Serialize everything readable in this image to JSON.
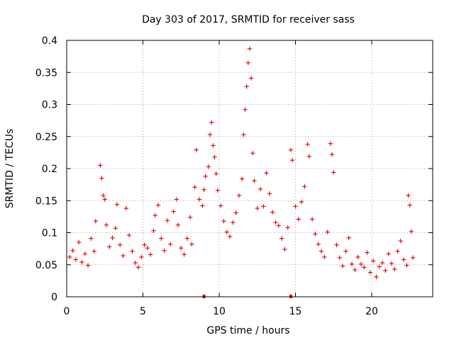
{
  "chart_data": {
    "type": "scatter",
    "title": "Day 303 of 2017, SRMTID for receiver sass",
    "xlabel": "GPS time / hours",
    "ylabel": "SRMTID / TECUs",
    "xlim": [
      0,
      24
    ],
    "ylim": [
      0,
      0.4
    ],
    "xticks": [
      0,
      5,
      10,
      15,
      20
    ],
    "xtick_labels": [
      "0",
      "5",
      "10",
      "15",
      "20"
    ],
    "yticks": [
      0,
      0.05,
      0.1,
      0.15,
      0.2,
      0.25,
      0.3,
      0.35,
      0.4
    ],
    "ytick_labels": [
      "0",
      "0.05",
      "0.1",
      "0.15",
      "0.2",
      "0.25",
      "0.3",
      "0.35",
      "0.4"
    ],
    "grid": true,
    "legend": "none",
    "marker": "plus",
    "color": "#e00000",
    "data_range_hours": [
      0,
      22.7
    ],
    "baseline_markers_x": [
      9.0,
      14.7
    ],
    "series": [
      {
        "name": "sass",
        "points": [
          [
            0.2,
            0.062
          ],
          [
            0.4,
            0.072
          ],
          [
            0.6,
            0.058
          ],
          [
            0.8,
            0.085
          ],
          [
            1.0,
            0.054
          ],
          [
            1.2,
            0.067
          ],
          [
            1.4,
            0.049
          ],
          [
            1.6,
            0.091
          ],
          [
            1.8,
            0.071
          ],
          [
            1.9,
            0.118
          ],
          [
            2.2,
            0.205
          ],
          [
            2.3,
            0.185
          ],
          [
            2.4,
            0.158
          ],
          [
            2.5,
            0.152
          ],
          [
            2.6,
            0.112
          ],
          [
            2.8,
            0.078
          ],
          [
            3.0,
            0.092
          ],
          [
            3.2,
            0.107
          ],
          [
            3.3,
            0.144
          ],
          [
            3.5,
            0.081
          ],
          [
            3.7,
            0.064
          ],
          [
            3.9,
            0.138
          ],
          [
            4.1,
            0.096
          ],
          [
            4.3,
            0.071
          ],
          [
            4.5,
            0.053
          ],
          [
            4.7,
            0.046
          ],
          [
            4.9,
            0.062
          ],
          [
            5.1,
            0.081
          ],
          [
            5.3,
            0.076
          ],
          [
            5.5,
            0.066
          ],
          [
            5.7,
            0.103
          ],
          [
            5.8,
            0.127
          ],
          [
            6.0,
            0.143
          ],
          [
            6.2,
            0.091
          ],
          [
            6.4,
            0.072
          ],
          [
            6.6,
            0.119
          ],
          [
            6.8,
            0.082
          ],
          [
            7.0,
            0.133
          ],
          [
            7.2,
            0.152
          ],
          [
            7.3,
            0.112
          ],
          [
            7.5,
            0.076
          ],
          [
            7.7,
            0.066
          ],
          [
            7.9,
            0.091
          ],
          [
            8.1,
            0.124
          ],
          [
            8.2,
            0.082
          ],
          [
            8.4,
            0.171
          ],
          [
            8.5,
            0.229
          ],
          [
            8.7,
            0.152
          ],
          [
            8.9,
            0.142
          ],
          [
            9.0,
            0.167
          ],
          [
            9.1,
            0.188
          ],
          [
            9.3,
            0.203
          ],
          [
            9.4,
            0.253
          ],
          [
            9.5,
            0.272
          ],
          [
            9.6,
            0.236
          ],
          [
            9.7,
            0.218
          ],
          [
            9.8,
            0.192
          ],
          [
            9.9,
            0.166
          ],
          [
            10.1,
            0.142
          ],
          [
            10.3,
            0.118
          ],
          [
            10.5,
            0.101
          ],
          [
            10.7,
            0.094
          ],
          [
            10.9,
            0.116
          ],
          [
            11.1,
            0.131
          ],
          [
            11.3,
            0.158
          ],
          [
            11.5,
            0.184
          ],
          [
            11.6,
            0.253
          ],
          [
            11.7,
            0.292
          ],
          [
            11.8,
            0.328
          ],
          [
            11.9,
            0.365
          ],
          [
            12.0,
            0.387
          ],
          [
            12.1,
            0.341
          ],
          [
            12.2,
            0.224
          ],
          [
            12.3,
            0.181
          ],
          [
            12.5,
            0.138
          ],
          [
            12.7,
            0.168
          ],
          [
            12.9,
            0.141
          ],
          [
            13.1,
            0.193
          ],
          [
            13.3,
            0.161
          ],
          [
            13.5,
            0.132
          ],
          [
            13.7,
            0.116
          ],
          [
            13.9,
            0.111
          ],
          [
            14.1,
            0.091
          ],
          [
            14.3,
            0.074
          ],
          [
            14.5,
            0.108
          ],
          [
            14.7,
            0.229
          ],
          [
            14.8,
            0.213
          ],
          [
            15.0,
            0.141
          ],
          [
            15.2,
            0.121
          ],
          [
            15.4,
            0.148
          ],
          [
            15.6,
            0.172
          ],
          [
            15.8,
            0.238
          ],
          [
            15.9,
            0.219
          ],
          [
            16.1,
            0.121
          ],
          [
            16.3,
            0.098
          ],
          [
            16.5,
            0.082
          ],
          [
            16.7,
            0.071
          ],
          [
            16.9,
            0.062
          ],
          [
            17.1,
            0.101
          ],
          [
            17.3,
            0.239
          ],
          [
            17.4,
            0.222
          ],
          [
            17.5,
            0.194
          ],
          [
            17.7,
            0.081
          ],
          [
            17.9,
            0.061
          ],
          [
            18.1,
            0.048
          ],
          [
            18.3,
            0.071
          ],
          [
            18.5,
            0.092
          ],
          [
            18.7,
            0.051
          ],
          [
            18.9,
            0.042
          ],
          [
            19.1,
            0.062
          ],
          [
            19.3,
            0.051
          ],
          [
            19.5,
            0.046
          ],
          [
            19.7,
            0.069
          ],
          [
            19.9,
            0.038
          ],
          [
            20.1,
            0.056
          ],
          [
            20.3,
            0.031
          ],
          [
            20.5,
            0.047
          ],
          [
            20.7,
            0.053
          ],
          [
            20.9,
            0.041
          ],
          [
            21.1,
            0.067
          ],
          [
            21.3,
            0.052
          ],
          [
            21.5,
            0.043
          ],
          [
            21.7,
            0.071
          ],
          [
            21.9,
            0.087
          ],
          [
            22.1,
            0.058
          ],
          [
            22.3,
            0.049
          ],
          [
            22.4,
            0.158
          ],
          [
            22.5,
            0.143
          ],
          [
            22.6,
            0.102
          ],
          [
            22.7,
            0.061
          ]
        ]
      }
    ]
  }
}
